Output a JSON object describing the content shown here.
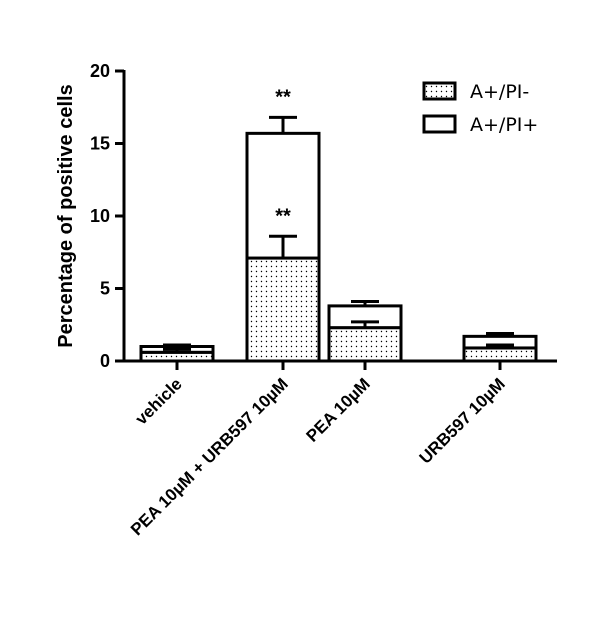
{
  "chart_data": {
    "type": "bar",
    "stacked": true,
    "ylabel": "Percentage of positive cells",
    "ylim": [
      0,
      20
    ],
    "yticks": [
      0,
      5,
      10,
      15,
      20
    ],
    "categories": [
      "vehicle",
      "PEA 10µM + URB597 10µM",
      "PEA 10µM",
      "URB597 10µM"
    ],
    "series": [
      {
        "name": "A+/PI-",
        "pattern": "dotted",
        "values": [
          0.6,
          7.1,
          2.3,
          0.9
        ],
        "errors": [
          0.2,
          1.5,
          0.4,
          0.2
        ]
      },
      {
        "name": "A+/PI+",
        "pattern": "white",
        "values": [
          0.4,
          8.6,
          1.5,
          0.8
        ],
        "errors": [
          0.1,
          1.1,
          0.3,
          0.2
        ]
      }
    ],
    "annotations": [
      {
        "category": "PEA 10µM + URB597 10µM",
        "series": "A+/PI-",
        "text": "**"
      },
      {
        "category": "PEA 10µM + URB597 10µM",
        "series": "A+/PI+",
        "text": "**"
      }
    ],
    "legend_position": "top-right",
    "grid": false
  }
}
